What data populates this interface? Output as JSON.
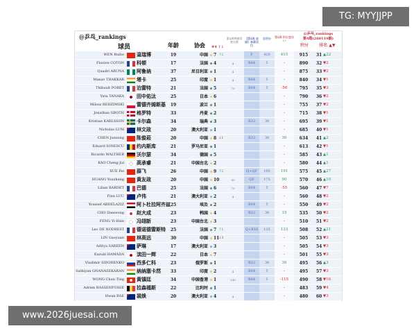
{
  "watermark_top": "TG: MYYJJPP",
  "watermark_bottom": "www.2026juesai.com",
  "header": {
    "handle": "@乒乓_rankings",
    "player": "球员",
    "age": "年龄",
    "assoc": "协会",
    "assoc_rank": "#4 ↑↓",
    "deducted": "第4周将被扣除分数",
    "result": "【第4周 成绩】参赛项目",
    "points": "总积分",
    "change": "第4周 积分变化 +/-",
    "period_handle": "@乒乓_rankings",
    "period": "第4周(260119期)",
    "total": "积分",
    "rank": "排名 ▲▼"
  },
  "colors": {
    "up": "#2a9a55",
    "down": "#d02a2a",
    "accent": "#c0303a"
  },
  "rows": [
    {
      "en": "WEN Ruibo",
      "flag": "cn",
      "cn": "温瑞博",
      "age": "19",
      "assoc": "中国",
      "dot": "y",
      "ar": "7",
      "ach": "↑2",
      "achd": "up",
      "ded": "",
      "res": "F",
      "pts": "420",
      "chg": "415",
      "chgd": "up",
      "tot": "915",
      "rk": "31",
      "rc": "▲22",
      "rcd": "up"
    },
    {
      "en": "Flavien COTON",
      "flag": "fr",
      "cn": "科顿",
      "age": "17",
      "assoc": "法国",
      "dot": "g",
      "ar": "4",
      "ach": "",
      "achd": "",
      "ded": "4",
      "res": "R64",
      "pts": "5",
      "chg": "-",
      "chgd": "",
      "tot": "890",
      "rk": "32",
      "rc": "▼2",
      "rcd": "down"
    },
    {
      "en": "Quadri ARUNA",
      "flag": "ng",
      "cn": "阿鲁纳",
      "age": "37",
      "assoc": "尼日利亚",
      "dot": "g",
      "ar": "1",
      "ach": "",
      "achd": "",
      "ded": "4",
      "res": "",
      "pts": "",
      "chg": "-",
      "chgd": "",
      "tot": "875",
      "rk": "33",
      "rc": "▼2",
      "rcd": "down"
    },
    {
      "en": "Manav THAKKAR",
      "flag": "in",
      "cn": "塔卡",
      "age": "25",
      "assoc": "印度",
      "dot": "y",
      "ar": "1",
      "ach": "",
      "achd": "",
      "ded": "4",
      "res": "R64",
      "pts": "5",
      "chg": "-",
      "chgd": "",
      "tot": "840",
      "rk": "34",
      "rc": "▼1",
      "rcd": "down"
    },
    {
      "en": "Thibault PORET",
      "flag": "fr",
      "cn": "泊雷特",
      "age": "21",
      "assoc": "法国",
      "dot": "g",
      "ar": "5",
      "ach": "",
      "achd": "",
      "ded": "70",
      "res": "R64",
      "pts": "5",
      "chg": "-50",
      "chgd": "down",
      "tot": "795",
      "rk": "35",
      "rc": "▼3",
      "rcd": "down"
    },
    {
      "en": "Yuta TANAKA",
      "flag": "jp",
      "cn": "田中佑汰",
      "age": "25",
      "assoc": "日本",
      "dot": "y",
      "ar": "6",
      "ach": "",
      "achd": "",
      "ded": "",
      "res": "",
      "pts": "",
      "chg": "-",
      "chgd": "",
      "tot": "790",
      "rk": "36",
      "rc": "▼2",
      "rcd": "down"
    },
    {
      "en": "Milosz REDZIMSKI",
      "flag": "pl",
      "cn": "雷德齐姆斯基",
      "age": "19",
      "assoc": "波兰",
      "dot": "g",
      "ar": "1",
      "ach": "",
      "achd": "",
      "ded": "",
      "res": "",
      "pts": "",
      "chg": "-",
      "chgd": "",
      "tot": "755",
      "rk": "37",
      "rc": "▼2",
      "rcd": "down"
    },
    {
      "en": "Jonathan GROTH",
      "flag": "dk",
      "cn": "格罗特",
      "age": "33",
      "assoc": "丹麦",
      "dot": "g",
      "ar": "2",
      "ach": "",
      "achd": "",
      "ded": "",
      "res": "",
      "pts": "",
      "chg": "-",
      "chgd": "",
      "tot": "715",
      "rk": "38",
      "rc": "▼1",
      "rcd": "down"
    },
    {
      "en": "Kristian KARLSSON",
      "flag": "se",
      "cn": "卡尔森",
      "age": "34",
      "assoc": "瑞典",
      "dot": "g",
      "ar": "3",
      "ach": "",
      "achd": "",
      "ded": "",
      "res": "R32",
      "pts": "30",
      "chg": "-",
      "chgd": "",
      "tot": "695",
      "rk": "39",
      "rc": "▼1",
      "rcd": "down"
    },
    {
      "en": "Nicholas LUM",
      "flag": "au",
      "cn": "林文政",
      "age": "20",
      "assoc": "澳大利亚",
      "dot": "b",
      "ar": "1",
      "ach": "",
      "achd": "",
      "ded": "",
      "res": "",
      "pts": "",
      "chg": "-",
      "chgd": "",
      "tot": "685",
      "rk": "40",
      "rc": "▼1",
      "rcd": "down"
    },
    {
      "en": "CHEN Junsong",
      "flag": "cn",
      "cn": "陈俊菘",
      "age": "20",
      "assoc": "中国",
      "dot": "y",
      "ar": "8",
      "ach": "↓1",
      "achd": "down",
      "ded": "",
      "res": "R32",
      "pts": "30",
      "chg": "30",
      "chgd": "up",
      "tot": "634",
      "rk": "41",
      "rc": "▲2",
      "rcd": "up"
    },
    {
      "en": "Eduard IONESCU",
      "flag": "ro",
      "cn": "约内斯库",
      "age": "21",
      "assoc": "罗马尼亚",
      "dot": "g",
      "ar": "1",
      "ach": "",
      "achd": "",
      "ded": "",
      "res": "",
      "pts": "",
      "chg": "-",
      "chgd": "",
      "tot": "613",
      "rk": "42",
      "rc": "▼1",
      "rcd": "down"
    },
    {
      "en": "Ricardo WALTHER",
      "flag": "de",
      "cn": "沃尔瑟",
      "age": "34",
      "assoc": "德国",
      "dot": "g",
      "ar": "5",
      "ach": "",
      "achd": "",
      "ded": "",
      "res": "",
      "pts": "",
      "chg": "-",
      "chgd": "",
      "tot": "585",
      "rk": "43",
      "rc": "▲1",
      "rcd": "up"
    },
    {
      "en": "KAO Cheng-Jui",
      "flag": "tpe",
      "cn": "高承睿",
      "age": "21",
      "assoc": "中国台北",
      "dot": "y",
      "ar": "2",
      "ach": "",
      "achd": "",
      "ded": "",
      "res": "",
      "pts": "",
      "chg": "-",
      "chgd": "",
      "tot": "580",
      "rk": "44",
      "rc": "▲1",
      "rcd": "up"
    },
    {
      "en": "XUE Fei",
      "flag": "cn",
      "cn": "薛飞",
      "age": "26",
      "assoc": "中国",
      "dot": "y",
      "ar": "9",
      "ach": "↑2",
      "achd": "up",
      "ded": "",
      "res": "Q+QF",
      "pts": "195",
      "chg": "191",
      "chgd": "up",
      "tot": "575",
      "rk": "45",
      "rc": "▲27",
      "rcd": "up"
    },
    {
      "en": "HUANG Youzheng",
      "flag": "cn",
      "cn": "黄友政",
      "age": "20",
      "assoc": "中国",
      "dot": "y",
      "ar": "10",
      "ach": "",
      "achd": "",
      "ded": "85",
      "res": "QF",
      "pts": "175",
      "chg": "90",
      "chgd": "up",
      "tot": "570",
      "rk": "46",
      "rc": "▲10",
      "rcd": "up"
    },
    {
      "en": "Lilian BARDET",
      "flag": "fr",
      "cn": "巴德",
      "age": "25",
      "assoc": "法国",
      "dot": "g",
      "ar": "6",
      "ach": "",
      "achd": "",
      "ded": "70",
      "res": "R64",
      "pts": "5",
      "chg": "-55",
      "chgd": "down",
      "tot": "560",
      "rk": "47",
      "rc": "▼7",
      "rcd": "down"
    },
    {
      "en": "Finn LUU",
      "flag": "au",
      "cn": "卢伟",
      "age": "21",
      "assoc": "澳大利亚",
      "dot": "b",
      "ar": "2",
      "ach": "",
      "achd": "",
      "ded": "4",
      "res": "",
      "pts": "",
      "chg": "-",
      "chgd": "",
      "tot": "560",
      "rk": "48",
      "rc": "▼2",
      "rcd": "down"
    },
    {
      "en": "Youssef ABDELAZIZ",
      "flag": "eg",
      "cn": "阿卜杜拉阿齐兹",
      "age": "25",
      "assoc": "埃及",
      "dot": "g",
      "ar": "2",
      "ach": "",
      "achd": "",
      "ded": "",
      "res": "R64",
      "pts": "5",
      "chg": "-",
      "chgd": "",
      "tot": "550",
      "rk": "49",
      "rc": "▼2",
      "rcd": "down"
    },
    {
      "en": "CHO Daeseong",
      "flag": "kr",
      "cn": "赵大成",
      "age": "23",
      "assoc": "韩国",
      "dot": "y",
      "ar": "4",
      "ach": "",
      "achd": "",
      "ded": "",
      "res": "R32",
      "pts": "30",
      "chg": "15",
      "chgd": "up",
      "tot": "535",
      "rk": "50",
      "rc": "▼2",
      "rcd": "down"
    },
    {
      "en": "FENG Yi-Hsin",
      "flag": "tpe",
      "cn": "冯翊新",
      "age": "23",
      "assoc": "中国台北",
      "dot": "y",
      "ar": "3",
      "ach": "",
      "achd": "",
      "ded": "",
      "res": "",
      "pts": "",
      "chg": "-",
      "chgd": "",
      "tot": "510",
      "rk": "51",
      "rc": "▼2",
      "rcd": "down"
    },
    {
      "en": "Leo DE NODREST",
      "flag": "fr",
      "cn": "德诺德雷斯特",
      "age": "25",
      "assoc": "法国",
      "dot": "g",
      "ar": "7",
      "ach": "↑1",
      "achd": "up",
      "ded": "",
      "res": "Q+R16",
      "pts": "135",
      "chg": "133",
      "chgd": "up",
      "tot": "508",
      "rk": "52",
      "rc": "▲21",
      "rcd": "up"
    },
    {
      "en": "LIN Gaoyuan",
      "flag": "cn",
      "cn": "林高远",
      "age": "30",
      "assoc": "中国",
      "dot": "y",
      "ar": "11",
      "ach": "↓3",
      "achd": "down",
      "ded": "",
      "res": "",
      "pts": "",
      "chg": "-",
      "chgd": "",
      "tot": "505",
      "rk": "53",
      "rc": "▼3",
      "rcd": "down"
    },
    {
      "en": "Aditya SAREEN",
      "flag": "au",
      "cn": "萨琳",
      "age": "17",
      "assoc": "澳大利亚",
      "dot": "b",
      "ar": "3",
      "ach": "",
      "achd": "",
      "ded": "",
      "res": "",
      "pts": "",
      "chg": "-",
      "chgd": "",
      "tot": "505",
      "rk": "54",
      "rc": "▼3",
      "rcd": "down"
    },
    {
      "en": "Kazuki HAMADA",
      "flag": "jp",
      "cn": "滨田一辉",
      "age": "22",
      "assoc": "日本",
      "dot": "y",
      "ar": "7",
      "ach": "",
      "achd": "",
      "ded": "",
      "res": "",
      "pts": "",
      "chg": "-",
      "chgd": "",
      "tot": "501",
      "rk": "55",
      "rc": "▼3",
      "rcd": "down"
    },
    {
      "en": "Vladimir SIDORENKO",
      "flag": "ru",
      "cn": "西多仁科",
      "age": "23",
      "assoc": "俄罗斯",
      "dot": "g",
      "ar": "1",
      "ach": "",
      "achd": "",
      "ded": "",
      "res": "R32",
      "pts": "30",
      "chg": "30",
      "chgd": "up",
      "tot": "495",
      "rk": "56",
      "rc": "▲3",
      "rcd": "up"
    },
    {
      "en": "Sathiyan GNANASEKARAN",
      "flag": "in",
      "cn": "纳纳塞卡然",
      "age": "33",
      "assoc": "印度",
      "dot": "y",
      "ar": "2",
      "ach": "",
      "achd": "",
      "ded": "4",
      "res": "R64",
      "pts": "5",
      "chg": "-",
      "chgd": "",
      "tot": "495",
      "rk": "57",
      "rc": "▼3",
      "rcd": "down"
    },
    {
      "en": "WONG Chun Ting",
      "flag": "hk",
      "cn": "黄镇廷",
      "age": "34",
      "assoc": "中国香港",
      "dot": "y",
      "ar": "1",
      "ach": "",
      "achd": "",
      "ded": "140",
      "res": "R64",
      "pts": "5",
      "chg": "-115",
      "chgd": "down",
      "tot": "490",
      "rk": "58",
      "rc": "▼16",
      "rcd": "down"
    },
    {
      "en": "Adrien RASSENFOSSE",
      "flag": "be",
      "cn": "拉森福斯",
      "age": "22",
      "assoc": "比利时",
      "dot": "g",
      "ar": "1",
      "ach": "",
      "achd": "",
      "ded": "",
      "res": "",
      "pts": "",
      "chg": "-",
      "chgd": "",
      "tot": "483",
      "rk": "59",
      "rc": "▼4",
      "rcd": "down"
    },
    {
      "en": "Hwan BAE",
      "flag": "au",
      "cn": "裴焕",
      "age": "20",
      "assoc": "澳大利亚",
      "dot": "b",
      "ar": "4",
      "ach": "",
      "achd": "",
      "ded": "4",
      "res": "",
      "pts": "",
      "chg": "-",
      "chgd": "",
      "tot": "480",
      "rk": "60",
      "rc": "▼3",
      "rcd": "down"
    }
  ]
}
